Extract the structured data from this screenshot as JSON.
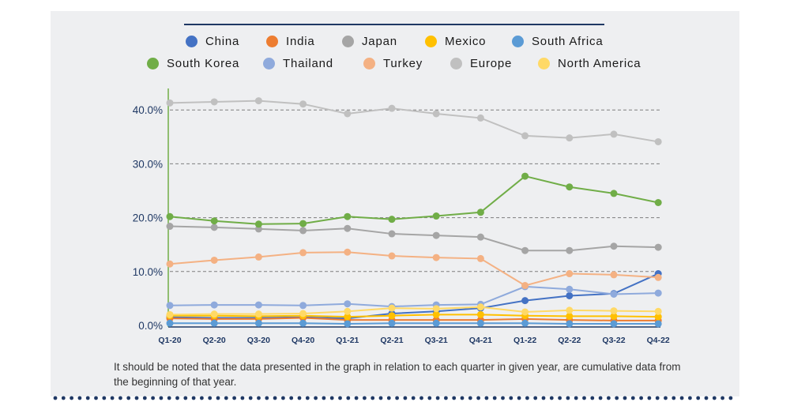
{
  "chart_data": {
    "type": "line",
    "categories": [
      "Q1-20",
      "Q2-20",
      "Q3-20",
      "Q4-20",
      "Q1-21",
      "Q2-21",
      "Q3-21",
      "Q4-21",
      "Q1-22",
      "Q2-22",
      "Q3-22",
      "Q4-22"
    ],
    "y_ticks": [
      "0.0%",
      "10.0%",
      "20.0%",
      "30.0%",
      "40.0%"
    ],
    "ylim": [
      0,
      44
    ],
    "grid": "horizontal dashed",
    "legend_position": "top",
    "series": [
      {
        "name": "China",
        "color": "#4472c4",
        "values": [
          1.5,
          1.4,
          1.4,
          1.5,
          1.3,
          2.2,
          2.6,
          3.2,
          4.6,
          5.5,
          5.9,
          9.6
        ]
      },
      {
        "name": "India",
        "color": "#ed7d31",
        "values": [
          1.3,
          1.2,
          1.2,
          1.4,
          1.0,
          1.0,
          1.0,
          1.0,
          1.2,
          1.0,
          0.9,
          0.9
        ]
      },
      {
        "name": "Japan",
        "color": "#a5a5a5",
        "values": [
          18.4,
          18.2,
          17.9,
          17.6,
          18.0,
          17.0,
          16.7,
          16.4,
          13.9,
          13.9,
          14.7,
          14.5
        ]
      },
      {
        "name": "Mexico",
        "color": "#ffc000",
        "values": [
          1.8,
          1.8,
          1.7,
          1.8,
          1.6,
          1.8,
          2.0,
          2.0,
          1.8,
          1.7,
          1.7,
          1.6
        ]
      },
      {
        "name": "South Africa",
        "color": "#5b9bd5",
        "values": [
          0.4,
          0.4,
          0.4,
          0.4,
          0.3,
          0.4,
          0.4,
          0.4,
          0.4,
          0.3,
          0.3,
          0.3
        ]
      },
      {
        "name": "South Korea",
        "color": "#70ad47",
        "values": [
          20.2,
          19.4,
          18.8,
          18.9,
          20.2,
          19.7,
          20.3,
          21.0,
          27.7,
          25.7,
          24.5,
          22.8
        ]
      },
      {
        "name": "Thailand",
        "color": "#8faadc",
        "values": [
          3.7,
          3.8,
          3.8,
          3.7,
          4.0,
          3.5,
          3.8,
          3.9,
          7.2,
          6.7,
          5.8,
          6.0
        ]
      },
      {
        "name": "Turkey",
        "color": "#f4b183",
        "values": [
          11.4,
          12.1,
          12.7,
          13.5,
          13.6,
          12.9,
          12.6,
          12.4,
          7.4,
          9.6,
          9.4,
          8.9
        ]
      },
      {
        "name": "Europe",
        "color": "#c0c0c0",
        "values": [
          41.3,
          41.5,
          41.7,
          41.1,
          39.3,
          40.3,
          39.3,
          38.5,
          35.2,
          34.8,
          35.5,
          34.1
        ]
      },
      {
        "name": "North America",
        "color": "#ffd966",
        "values": [
          2.0,
          2.1,
          2.1,
          2.2,
          2.6,
          3.2,
          3.1,
          3.4,
          2.5,
          2.8,
          2.7,
          2.6
        ]
      }
    ]
  },
  "note": "It should be noted that the data presented in the graph in relation to each quarter in given year, are cumulative data from the beginning of that year."
}
